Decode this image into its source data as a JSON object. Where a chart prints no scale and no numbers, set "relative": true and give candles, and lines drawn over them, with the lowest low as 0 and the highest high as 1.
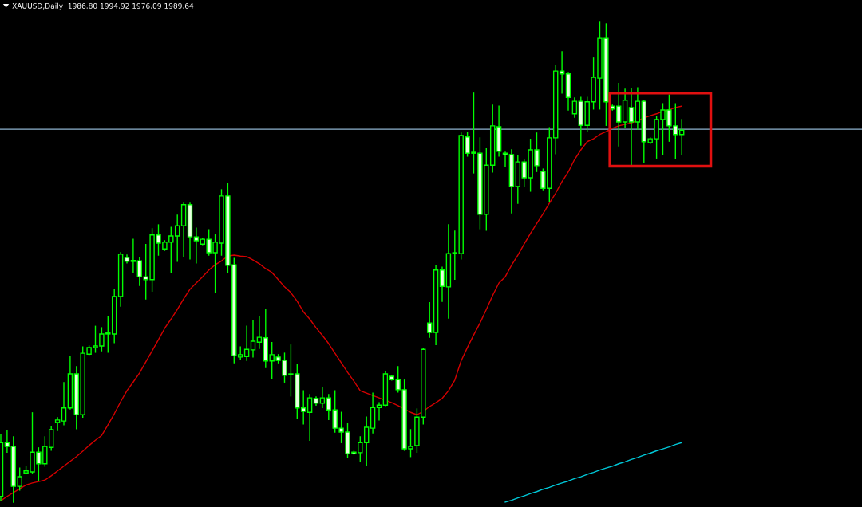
{
  "chart_data": {
    "type": "candlestick",
    "title": "XAUUSD,Daily  1986.80 1994.92 1976.09 1989.64",
    "relative": true,
    "color": "#00ff00",
    "categories": [
      null,
      null,
      null,
      null,
      null,
      null,
      null,
      null,
      null,
      null,
      null,
      null,
      null,
      null,
      null,
      null,
      null,
      null,
      null,
      null,
      null,
      null,
      null,
      null,
      null,
      null,
      null,
      null,
      null,
      null,
      null,
      null,
      null,
      null,
      null,
      null,
      null,
      null,
      null,
      null,
      null,
      null,
      null,
      null,
      null,
      null,
      null,
      null,
      null,
      null,
      null,
      null,
      null,
      null,
      null,
      null,
      null,
      null,
      null,
      null,
      null,
      null,
      null,
      null,
      null,
      null,
      null,
      null,
      null,
      null,
      null,
      null,
      null,
      null,
      null,
      null,
      null,
      null,
      null,
      null,
      null,
      null,
      null,
      null,
      null,
      null,
      null,
      null,
      null,
      null,
      null,
      null,
      null,
      null,
      null,
      null,
      null,
      null,
      null,
      null,
      null,
      null,
      null,
      null,
      null,
      null,
      null,
      null,
      null
    ],
    "ohlc": [
      [
        0.012,
        0.141,
        0.003,
        0.124
      ],
      [
        0.124,
        0.149,
        0.104,
        0.116
      ],
      [
        0.116,
        0.136,
        0,
        0.033
      ],
      [
        0.033,
        0.071,
        0.025,
        0.053
      ],
      [
        0.061,
        0.075,
        0.06,
        0.065
      ],
      [
        0.063,
        0.186,
        0.061,
        0.104
      ],
      [
        0.104,
        0.113,
        0.046,
        0.08
      ],
      [
        0.08,
        0.136,
        0.075,
        0.116
      ],
      [
        0.114,
        0.158,
        0.108,
        0.151
      ],
      [
        0.166,
        0.176,
        0.149,
        0.171
      ],
      [
        0.169,
        0.249,
        0.161,
        0.196
      ],
      [
        0.196,
        0.303,
        0.194,
        0.267
      ],
      [
        0.267,
        0.282,
        0.153,
        0.182
      ],
      [
        0.182,
        0.323,
        0.177,
        0.31
      ],
      [
        0.308,
        0.325,
        0.307,
        0.322
      ],
      [
        0.322,
        0.366,
        0.312,
        0.325
      ],
      [
        0.325,
        0.363,
        0.315,
        0.35
      ],
      [
        0.35,
        0.386,
        0.312,
        0.35
      ],
      [
        0.35,
        0.443,
        0.332,
        0.428
      ],
      [
        0.428,
        0.519,
        0.408,
        0.516
      ],
      [
        0.509,
        0.514,
        0.498,
        0.501
      ],
      [
        0.501,
        0.547,
        0.478,
        0.502
      ],
      [
        0.502,
        0.509,
        0.451,
        0.469
      ],
      [
        0.469,
        0.536,
        0.423,
        0.463
      ],
      [
        0.463,
        0.569,
        0.439,
        0.556
      ],
      [
        0.556,
        0.577,
        0.514,
        0.539
      ],
      [
        0.527,
        0.544,
        0.524,
        0.541
      ],
      [
        0.541,
        0.572,
        0.478,
        0.554
      ],
      [
        0.554,
        0.597,
        0.501,
        0.575
      ],
      [
        0.575,
        0.622,
        0.511,
        0.619
      ],
      [
        0.619,
        0.622,
        0.506,
        0.552
      ],
      [
        0.552,
        0.57,
        0.498,
        0.544
      ],
      [
        0.537,
        0.549,
        0.536,
        0.547
      ],
      [
        0.547,
        0.567,
        0.514,
        0.519
      ],
      [
        0.519,
        0.556,
        0.436,
        0.541
      ],
      [
        0.539,
        0.65,
        0.514,
        0.637
      ],
      [
        0.637,
        0.663,
        0.478,
        0.493
      ],
      [
        0.494,
        0.507,
        0.29,
        0.305
      ],
      [
        0.302,
        0.323,
        0.297,
        0.307
      ],
      [
        0.303,
        0.366,
        0.295,
        0.318
      ],
      [
        0.317,
        0.378,
        0.302,
        0.335
      ],
      [
        0.333,
        0.386,
        0.32,
        0.343
      ],
      [
        0.342,
        0.4,
        0.28,
        0.294
      ],
      [
        0.294,
        0.332,
        0.257,
        0.307
      ],
      [
        0.302,
        0.307,
        0.29,
        0.295
      ],
      [
        0.295,
        0.31,
        0.25,
        0.264
      ],
      [
        0.265,
        0.327,
        0.221,
        0.265
      ],
      [
        0.267,
        0.287,
        0.174,
        0.196
      ],
      [
        0.196,
        0.232,
        0.163,
        0.189
      ],
      [
        0.187,
        0.224,
        0.129,
        0.217
      ],
      [
        0.216,
        0.219,
        0.202,
        0.206
      ],
      [
        0.206,
        0.239,
        0.197,
        0.217
      ],
      [
        0.217,
        0.224,
        0.172,
        0.192
      ],
      [
        0.192,
        0.232,
        0.146,
        0.154
      ],
      [
        0.154,
        0.187,
        0.124,
        0.146
      ],
      [
        0.146,
        0.163,
        0.093,
        0.101
      ],
      [
        0.104,
        0.106,
        0.1,
        0.101
      ],
      [
        0.103,
        0.136,
        0.085,
        0.124
      ],
      [
        0.124,
        0.177,
        0.076,
        0.156
      ],
      [
        0.154,
        0.227,
        0.144,
        0.197
      ],
      [
        0.197,
        0.207,
        0.171,
        0.202
      ],
      [
        0.202,
        0.272,
        0.201,
        0.267
      ],
      [
        0.262,
        0.264,
        0.254,
        0.255
      ],
      [
        0.255,
        0.282,
        0.229,
        0.234
      ],
      [
        0.234,
        0.254,
        0.108,
        0.111
      ],
      [
        0.111,
        0.151,
        0.095,
        0.116
      ],
      [
        0.118,
        0.194,
        0.104,
        0.177
      ],
      [
        0.177,
        0.32,
        0.163,
        0.318
      ],
      [
        0.373,
        0.415,
        0.343,
        0.353
      ],
      [
        0.353,
        0.493,
        0.328,
        0.483
      ],
      [
        0.483,
        0.489,
        0.418,
        0.449
      ],
      [
        0.448,
        0.577,
        0.383,
        0.517
      ],
      [
        0.517,
        0.564,
        0.464,
        0.517
      ],
      [
        0.517,
        0.768,
        0.506,
        0.763
      ],
      [
        0.76,
        0.769,
        0.72,
        0.726
      ],
      [
        0.726,
        0.851,
        0.685,
        0.726
      ],
      [
        0.726,
        0.758,
        0.569,
        0.599
      ],
      [
        0.599,
        0.735,
        0.566,
        0.701
      ],
      [
        0.701,
        0.826,
        0.687,
        0.783
      ],
      [
        0.781,
        0.824,
        0.72,
        0.73
      ],
      [
        0.726,
        0.728,
        0.698,
        0.723
      ],
      [
        0.723,
        0.733,
        0.602,
        0.657
      ],
      [
        0.657,
        0.721,
        0.622,
        0.708
      ],
      [
        0.708,
        0.713,
        0.658,
        0.675
      ],
      [
        0.675,
        0.755,
        0.647,
        0.733
      ],
      [
        0.733,
        0.768,
        0.688,
        0.7
      ],
      [
        0.688,
        0.693,
        0.65,
        0.653
      ],
      [
        0.653,
        0.779,
        0.625,
        0.758
      ],
      [
        0.758,
        0.909,
        0.725,
        0.897
      ],
      [
        0.897,
        0.937,
        0.851,
        0.891
      ],
      [
        0.891,
        0.894,
        0.816,
        0.842
      ],
      [
        0.808,
        0.841,
        0.801,
        0.834
      ],
      [
        0.834,
        0.842,
        0.743,
        0.784
      ],
      [
        0.784,
        0.842,
        0.771,
        0.833
      ],
      [
        0.833,
        0.924,
        0.818,
        0.884
      ],
      [
        0.882,
        1,
        0.818,
        0.965
      ],
      [
        0.965,
        0.995,
        0.784,
        0.833
      ],
      [
        0.824,
        0.826,
        0.816,
        0.818
      ],
      [
        0.824,
        0.871,
        0.741,
        0.791
      ],
      [
        0.791,
        0.859,
        0.779,
        0.836
      ],
      [
        0.821,
        0.861,
        0.701,
        0.791
      ],
      [
        0.791,
        0.862,
        0.776,
        0.834
      ],
      [
        0.834,
        0.836,
        0.706,
        0.75
      ],
      [
        0.748,
        0.758,
        0.746,
        0.756
      ],
      [
        0.756,
        0.803,
        0.716,
        0.796
      ],
      [
        0.796,
        0.829,
        0.723,
        0.816
      ],
      [
        0.816,
        0.847,
        0.751,
        0.783
      ],
      [
        0.783,
        0.829,
        0.716,
        0.765
      ],
      [
        0.765,
        0.796,
        0.723,
        0.774
      ]
    ],
    "series": [
      {
        "type": "line",
        "color": "#d40000",
        "values": [
          0.003,
          0.012,
          0.02,
          0.028,
          0.036,
          0.04,
          0.043,
          0.046,
          0.055,
          0.065,
          0.075,
          0.085,
          0.095,
          0.106,
          0.118,
          0.129,
          0.139,
          0.161,
          0.184,
          0.209,
          0.232,
          0.25,
          0.269,
          0.292,
          0.315,
          0.338,
          0.362,
          0.381,
          0.401,
          0.423,
          0.443,
          0.456,
          0.469,
          0.483,
          0.494,
          0.502,
          0.512,
          0.514,
          0.512,
          0.511,
          0.504,
          0.496,
          0.486,
          0.478,
          0.463,
          0.448,
          0.436,
          0.418,
          0.396,
          0.381,
          0.363,
          0.347,
          0.33,
          0.31,
          0.29,
          0.27,
          0.252,
          0.232,
          0.227,
          0.222,
          0.217,
          0.212,
          0.207,
          0.201,
          0.194,
          0.187,
          0.182,
          0.189,
          0.199,
          0.207,
          0.216,
          0.232,
          0.254,
          0.294,
          0.322,
          0.348,
          0.373,
          0.401,
          0.43,
          0.456,
          0.469,
          0.493,
          0.514,
          0.537,
          0.559,
          0.58,
          0.6,
          0.622,
          0.643,
          0.667,
          0.687,
          0.713,
          0.733,
          0.75,
          0.756,
          0.765,
          0.771,
          0.778,
          0.783,
          0.786,
          0.789,
          0.794,
          0.799,
          0.804,
          0.808,
          0.813,
          0.816,
          0.821,
          0.824
        ]
      },
      {
        "type": "line",
        "color": "#00c8d8",
        "values": [
          null,
          null,
          null,
          null,
          null,
          null,
          null,
          null,
          null,
          null,
          null,
          null,
          null,
          null,
          null,
          null,
          null,
          null,
          null,
          null,
          null,
          null,
          null,
          null,
          null,
          null,
          null,
          null,
          null,
          null,
          null,
          null,
          null,
          null,
          null,
          null,
          null,
          null,
          null,
          null,
          null,
          null,
          null,
          null,
          null,
          null,
          null,
          null,
          null,
          null,
          null,
          null,
          null,
          null,
          null,
          null,
          null,
          null,
          null,
          null,
          null,
          null,
          null,
          null,
          null,
          null,
          null,
          null,
          null,
          null,
          null,
          null,
          null,
          null,
          null,
          null,
          null,
          null,
          null,
          null,
          0,
          0.004,
          0.009,
          0.013,
          0.018,
          0.022,
          0.027,
          0.031,
          0.036,
          0.04,
          0.044,
          0.049,
          0.053,
          0.058,
          0.062,
          0.067,
          0.071,
          0.075,
          0.08,
          0.084,
          0.089,
          0.093,
          0.098,
          0.102,
          0.107,
          0.111,
          0.115,
          0.12,
          0.124
        ]
      }
    ],
    "ref_lines": [
      {
        "axis": "y",
        "value": 0.776,
        "color": "#8fb4d0"
      }
    ]
  }
}
